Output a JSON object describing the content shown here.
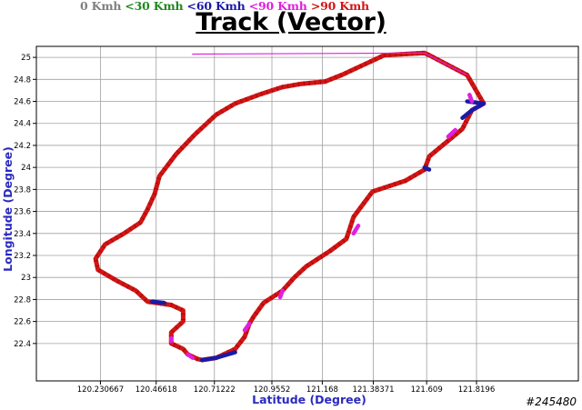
{
  "legend": {
    "items": [
      {
        "label": "0 Kmh",
        "color": "#808080"
      },
      {
        "label": " <30 Kmh",
        "color": "#1f8a1f"
      },
      {
        "label": " <60 Kmh",
        "color": "#1a1aa8"
      },
      {
        "label": " <90 Kmh",
        "color": "#e020e0"
      },
      {
        "label": " >90 Kmh",
        "color": "#d41414"
      }
    ]
  },
  "watermark": "#245480",
  "chart_data": {
    "type": "line",
    "title": "Track (Vector)",
    "xlabel": "Latitude (Degree)",
    "ylabel": "Longitude (Degree)",
    "xticks": [
      "120.230667",
      "120.46618",
      "120.71222",
      "120.9552",
      "121.168",
      "121.38371",
      "121.609",
      "121.8196"
    ],
    "xtick_values": [
      120.230667,
      120.46618,
      120.71222,
      120.9552,
      121.168,
      121.38371,
      121.609,
      121.8196
    ],
    "yticks": [
      22.4,
      22.6,
      22.8,
      23,
      23.2,
      23.4,
      23.6,
      23.8,
      24,
      24.2,
      24.4,
      24.6,
      24.8,
      25
    ],
    "xlim": [
      119.96,
      122.25
    ],
    "ylim": [
      22.06,
      25.1
    ],
    "grid": true,
    "speed_colors": {
      "slow": "#808080",
      "lt30": "#1f8a1f",
      "lt60": "#1a1aa8",
      "lt90": "#e020e0",
      "gt90": "#d41414"
    },
    "track": [
      [
        121.43,
        25.02
      ],
      [
        121.6,
        25.04
      ],
      [
        121.62,
        25.02
      ],
      [
        121.78,
        24.84
      ],
      [
        121.85,
        24.58
      ],
      [
        121.8,
        24.52
      ],
      [
        121.76,
        24.35
      ],
      [
        121.62,
        24.1
      ],
      [
        121.6,
        23.98
      ],
      [
        121.52,
        23.88
      ],
      [
        121.38,
        23.78
      ],
      [
        121.3,
        23.55
      ],
      [
        121.27,
        23.35
      ],
      [
        121.2,
        23.24
      ],
      [
        121.1,
        23.1
      ],
      [
        121.05,
        23.0
      ],
      [
        121.0,
        22.88
      ],
      [
        120.92,
        22.77
      ],
      [
        120.88,
        22.65
      ],
      [
        120.86,
        22.58
      ],
      [
        120.84,
        22.46
      ],
      [
        120.8,
        22.35
      ],
      [
        120.72,
        22.27
      ],
      [
        120.66,
        22.25
      ],
      [
        120.64,
        22.26
      ],
      [
        120.6,
        22.3
      ],
      [
        120.58,
        22.35
      ],
      [
        120.53,
        22.4
      ],
      [
        120.53,
        22.5
      ],
      [
        120.58,
        22.6
      ],
      [
        120.58,
        22.7
      ],
      [
        120.53,
        22.75
      ],
      [
        120.43,
        22.78
      ],
      [
        120.38,
        22.88
      ],
      [
        120.3,
        22.97
      ],
      [
        120.22,
        23.07
      ],
      [
        120.21,
        23.17
      ],
      [
        120.25,
        23.3
      ],
      [
        120.33,
        23.4
      ],
      [
        120.4,
        23.5
      ],
      [
        120.43,
        23.62
      ],
      [
        120.46,
        23.76
      ],
      [
        120.48,
        23.92
      ],
      [
        120.55,
        24.12
      ],
      [
        120.63,
        24.3
      ],
      [
        120.72,
        24.48
      ],
      [
        120.8,
        24.58
      ],
      [
        120.9,
        24.66
      ],
      [
        121.0,
        24.73
      ],
      [
        121.08,
        24.76
      ],
      [
        121.18,
        24.78
      ],
      [
        121.25,
        24.84
      ],
      [
        121.35,
        24.94
      ],
      [
        121.43,
        25.02
      ]
    ],
    "slow_segments": [
      {
        "color": "lt60",
        "points": [
          [
            121.78,
            24.6
          ],
          [
            121.85,
            24.58
          ],
          [
            121.8,
            24.52
          ],
          [
            121.76,
            24.45
          ]
        ]
      },
      {
        "color": "lt90",
        "points": [
          [
            121.79,
            24.66
          ],
          [
            121.8,
            24.6
          ]
        ]
      },
      {
        "color": "lt90",
        "points": [
          [
            121.73,
            24.34
          ],
          [
            121.7,
            24.28
          ]
        ]
      },
      {
        "color": "lt60",
        "points": [
          [
            121.6,
            24.0
          ],
          [
            121.62,
            23.98
          ]
        ]
      },
      {
        "color": "lt90",
        "points": [
          [
            121.32,
            23.47
          ],
          [
            121.3,
            23.4
          ]
        ]
      },
      {
        "color": "lt90",
        "points": [
          [
            121.0,
            22.88
          ],
          [
            120.99,
            22.82
          ]
        ]
      },
      {
        "color": "lt90",
        "points": [
          [
            120.86,
            22.58
          ],
          [
            120.84,
            22.52
          ]
        ]
      },
      {
        "color": "lt60",
        "points": [
          [
            120.8,
            22.32
          ],
          [
            120.72,
            22.27
          ],
          [
            120.66,
            22.25
          ]
        ]
      },
      {
        "color": "lt90",
        "points": [
          [
            120.62,
            22.27
          ],
          [
            120.6,
            22.3
          ]
        ]
      },
      {
        "color": "lt90",
        "points": [
          [
            120.53,
            22.42
          ],
          [
            120.53,
            22.45
          ]
        ]
      },
      {
        "color": "lt60",
        "points": [
          [
            120.5,
            22.77
          ],
          [
            120.45,
            22.78
          ]
        ]
      },
      {
        "color": "lt90",
        "points": [
          [
            120.62,
            25.03
          ],
          [
            121.6,
            25.04
          ],
          [
            121.78,
            24.84
          ]
        ]
      }
    ]
  }
}
